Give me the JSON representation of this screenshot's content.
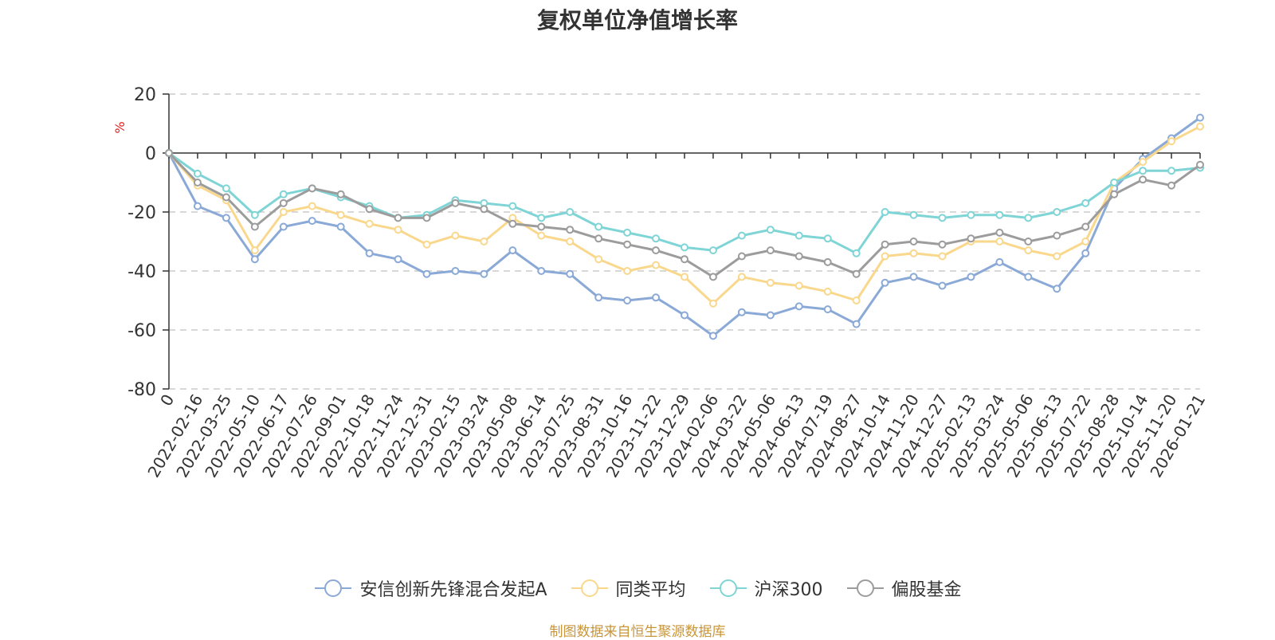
{
  "chart_data": {
    "type": "line",
    "title": "复权单位净值增长率",
    "ylabel": "%",
    "ylim": [
      -80,
      20
    ],
    "yticks": [
      20,
      0,
      -20,
      -40,
      -60,
      -80
    ],
    "grid": true,
    "legend_position": "bottom-center",
    "x": [
      "0",
      "2022-02-16",
      "2022-03-25",
      "2022-05-10",
      "2022-06-17",
      "2022-07-26",
      "2022-09-01",
      "2022-10-18",
      "2022-11-24",
      "2022-12-31",
      "2023-02-15",
      "2023-03-24",
      "2023-05-08",
      "2023-06-14",
      "2023-07-25",
      "2023-08-31",
      "2023-10-16",
      "2023-11-22",
      "2023-12-29",
      "2024-02-06",
      "2024-03-22",
      "2024-05-06",
      "2024-06-13",
      "2024-07-19",
      "2024-08-27",
      "2024-10-14",
      "2024-11-20",
      "2024-12-27",
      "2025-02-13",
      "2025-03-24",
      "2025-05-06",
      "2025-06-13",
      "2025-07-22",
      "2025-08-28",
      "2025-10-14",
      "2025-11-20",
      "2026-01-21"
    ],
    "series": [
      {
        "name": "安信创新先锋混合发起A",
        "color": "#8aa9d6",
        "values": [
          0,
          -18,
          -22,
          -36,
          -25,
          -23,
          -25,
          -34,
          -36,
          -41,
          -40,
          -41,
          -33,
          -40,
          -41,
          -49,
          -50,
          -49,
          -55,
          -62,
          -54,
          -55,
          -52,
          -53,
          -58,
          -44,
          -42,
          -45,
          -42,
          -37,
          -42,
          -46,
          -34,
          -12,
          -2,
          5,
          12
        ]
      },
      {
        "name": "同类平均",
        "color": "#f9d88d",
        "values": [
          0,
          -11,
          -16,
          -33,
          -20,
          -18,
          -21,
          -24,
          -26,
          -31,
          -28,
          -30,
          -22,
          -28,
          -30,
          -36,
          -40,
          -38,
          -42,
          -51,
          -42,
          -44,
          -45,
          -47,
          -50,
          -35,
          -34,
          -35,
          -30,
          -30,
          -33,
          -35,
          -30,
          -10,
          -3,
          4,
          9
        ]
      },
      {
        "name": "沪深300",
        "color": "#7fd4d6",
        "values": [
          0,
          -7,
          -12,
          -21,
          -14,
          -12,
          -15,
          -18,
          -22,
          -21,
          -16,
          -17,
          -18,
          -22,
          -20,
          -25,
          -27,
          -29,
          -32,
          -33,
          -28,
          -26,
          -28,
          -29,
          -34,
          -20,
          -21,
          -22,
          -21,
          -21,
          -22,
          -20,
          -17,
          -10,
          -6,
          -6,
          -5
        ]
      },
      {
        "name": "偏股基金",
        "color": "#9c9c9c",
        "values": [
          0,
          -10,
          -15,
          -25,
          -17,
          -12,
          -14,
          -19,
          -22,
          -22,
          -17,
          -19,
          -24,
          -25,
          -26,
          -29,
          -31,
          -33,
          -36,
          -42,
          -35,
          -33,
          -35,
          -37,
          -41,
          -31,
          -30,
          -31,
          -29,
          -27,
          -30,
          -28,
          -25,
          -14,
          -9,
          -11,
          -4
        ]
      }
    ]
  },
  "source_text": "制图数据来自恒生聚源数据库"
}
